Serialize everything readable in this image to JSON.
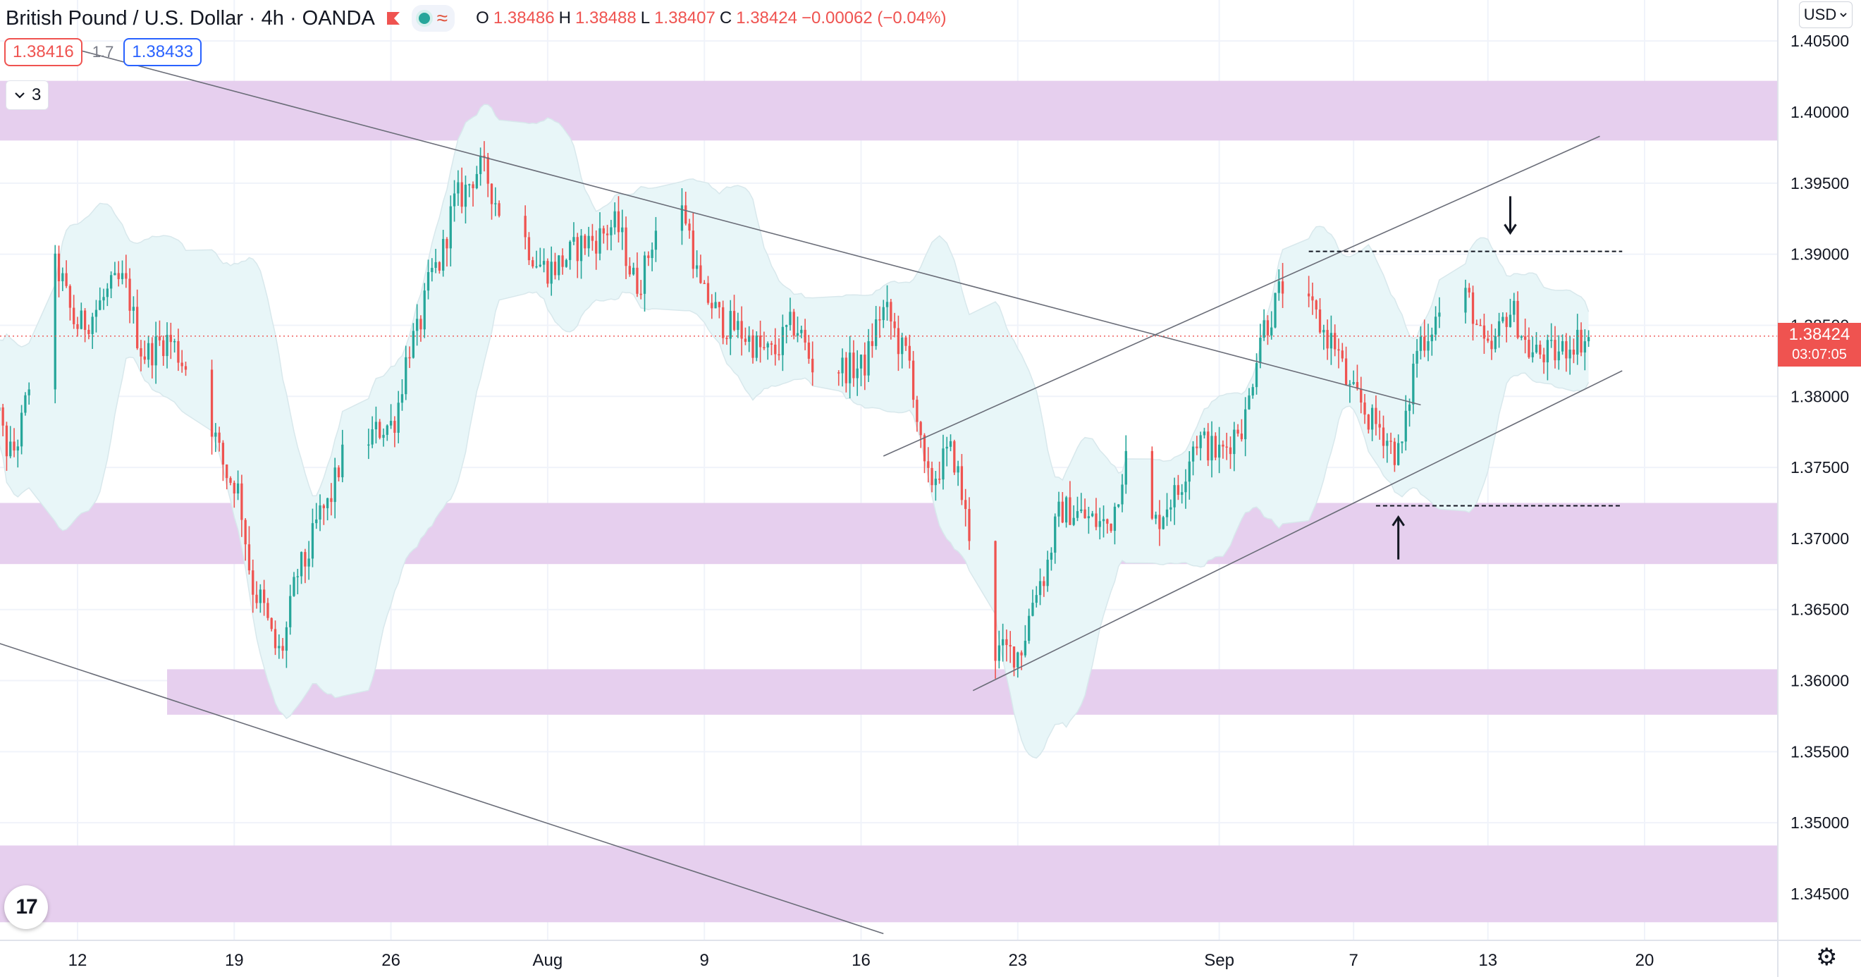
{
  "header": {
    "title": "British Pound / U.S. Dollar · 4h · OANDA",
    "ohlc": {
      "o_label": "O",
      "o": "1.38486",
      "h_label": "H",
      "h": "1.38488",
      "l_label": "L",
      "l": "1.38407",
      "c_label": "C",
      "c": "1.38424",
      "change": "−0.00062 (−0.04%)"
    },
    "flag_icon": "flag-icon",
    "wave_glyph": "≈"
  },
  "trade": {
    "sell": "1.38416",
    "spread": "1.7",
    "buy": "1.38433"
  },
  "indicators_toggle": {
    "count": "3"
  },
  "currency": {
    "label": "USD"
  },
  "current_price": {
    "price": "1.38424",
    "countdown": "03:07:05"
  },
  "logo": {
    "text": "17"
  },
  "colors": {
    "up": "#26a69a",
    "down": "#ef5350",
    "zone": "#e6cfee",
    "band": "#e8f6f8",
    "accent": "#2962ff"
  },
  "chart_data": {
    "type": "candlestick",
    "price_axis": [
      "1.40500",
      "1.40000",
      "1.39500",
      "1.39000",
      "1.38500",
      "1.38000",
      "1.37500",
      "1.37000",
      "1.36500",
      "1.36000",
      "1.35500",
      "1.35000",
      "1.34500"
    ],
    "time_axis": [
      {
        "label": "12",
        "date": "2021-07-12"
      },
      {
        "label": "19",
        "date": "2021-07-19"
      },
      {
        "label": "26",
        "date": "2021-07-26"
      },
      {
        "label": "Aug",
        "date": "2021-08-02"
      },
      {
        "label": "9",
        "date": "2021-08-09"
      },
      {
        "label": "16",
        "date": "2021-08-16"
      },
      {
        "label": "23",
        "date": "2021-08-23"
      },
      {
        "label": "Sep",
        "date": "2021-09-01"
      },
      {
        "label": "7",
        "date": "2021-09-07"
      },
      {
        "label": "13",
        "date": "2021-09-13"
      },
      {
        "label": "20",
        "date": "2021-09-20"
      }
    ],
    "ylim": [
      1.3425,
      1.4065
    ],
    "price_anchors": [
      [
        "2021-07-08",
        1.381
      ],
      [
        "2021-07-09",
        1.376
      ],
      [
        "2021-07-11",
        1.389
      ],
      [
        "2021-07-12",
        1.385
      ],
      [
        "2021-07-14",
        1.388
      ],
      [
        "2021-07-15",
        1.383
      ],
      [
        "2021-07-16",
        1.384
      ],
      [
        "2021-07-17",
        1.382
      ],
      [
        "2021-07-19",
        1.374
      ],
      [
        "2021-07-20",
        1.366
      ],
      [
        "2021-07-21",
        1.362
      ],
      [
        "2021-07-22",
        1.368
      ],
      [
        "2021-07-23",
        1.372
      ],
      [
        "2021-07-24",
        1.376
      ],
      [
        "2021-07-26",
        1.378
      ],
      [
        "2021-07-27",
        1.384
      ],
      [
        "2021-07-28",
        1.389
      ],
      [
        "2021-07-29",
        1.394
      ],
      [
        "2021-07-30",
        1.396
      ],
      [
        "2021-07-31",
        1.393
      ],
      [
        "2021-08-02",
        1.389
      ],
      [
        "2021-08-04",
        1.391
      ],
      [
        "2021-08-05",
        1.392
      ],
      [
        "2021-08-06",
        1.388
      ],
      [
        "2021-08-07",
        1.392
      ],
      [
        "2021-08-08",
        1.393
      ],
      [
        "2021-08-09",
        1.387
      ],
      [
        "2021-08-10",
        1.385
      ],
      [
        "2021-08-12",
        1.383
      ],
      [
        "2021-08-13",
        1.385
      ],
      [
        "2021-08-14",
        1.382
      ],
      [
        "2021-08-16",
        1.382
      ],
      [
        "2021-08-17",
        1.386
      ],
      [
        "2021-08-18",
        1.383
      ],
      [
        "2021-08-19",
        1.374
      ],
      [
        "2021-08-20",
        1.376
      ],
      [
        "2021-08-21",
        1.37
      ],
      [
        "2021-08-22",
        1.362
      ],
      [
        "2021-08-23",
        1.362
      ],
      [
        "2021-08-24",
        1.367
      ],
      [
        "2021-08-25",
        1.372
      ],
      [
        "2021-08-27",
        1.371
      ],
      [
        "2021-08-28",
        1.376
      ],
      [
        "2021-08-29",
        1.371
      ],
      [
        "2021-08-30",
        1.373
      ],
      [
        "2021-08-31",
        1.377
      ],
      [
        "2021-09-01",
        1.376
      ],
      [
        "2021-09-02",
        1.378
      ],
      [
        "2021-09-03",
        1.385
      ],
      [
        "2021-09-04",
        1.388
      ],
      [
        "2021-09-05",
        1.386
      ],
      [
        "2021-09-06",
        1.384
      ],
      [
        "2021-09-07",
        1.38
      ],
      [
        "2021-09-08",
        1.378
      ],
      [
        "2021-09-09",
        1.376
      ],
      [
        "2021-09-10",
        1.384
      ],
      [
        "2021-09-11",
        1.386
      ],
      [
        "2021-09-12",
        1.387
      ],
      [
        "2021-09-13",
        1.383
      ],
      [
        "2021-09-14",
        1.386
      ],
      [
        "2021-09-15",
        1.383
      ],
      [
        "2021-09-16",
        1.383
      ],
      [
        "2021-09-17",
        1.384
      ]
    ],
    "zones": [
      {
        "from": 1.398,
        "to": 1.4022
      },
      {
        "from": 1.3682,
        "to": 1.3725
      },
      {
        "from": 1.3576,
        "to": 1.3608,
        "start": "2021-07-16"
      },
      {
        "from": 1.343,
        "to": 1.3484
      }
    ],
    "trendlines": [
      {
        "from": [
          "2021-07-11",
          1.4048
        ],
        "to": [
          "2021-09-10",
          1.3794
        ]
      },
      {
        "from": [
          "2021-07-01",
          1.3665
        ],
        "to": [
          "2021-08-17",
          1.3422
        ]
      },
      {
        "from": [
          "2021-08-17",
          1.3758
        ],
        "to": [
          "2021-09-18",
          1.3983
        ]
      },
      {
        "from": [
          "2021-08-21",
          1.3593
        ],
        "to": [
          "2021-09-19",
          1.3818
        ]
      }
    ],
    "hlines": [
      {
        "price": 1.3902,
        "from": "2021-09-05",
        "to": "2021-09-19"
      },
      {
        "price": 1.3723,
        "from": "2021-09-08",
        "to": "2021-09-19"
      },
      {
        "price": 1.38424,
        "style": "current"
      }
    ],
    "arrows": [
      {
        "date": "2021-09-14",
        "direction": "down",
        "tip": 1.3915
      },
      {
        "date": "2021-09-09",
        "direction": "up",
        "tip": 1.3715
      }
    ]
  }
}
